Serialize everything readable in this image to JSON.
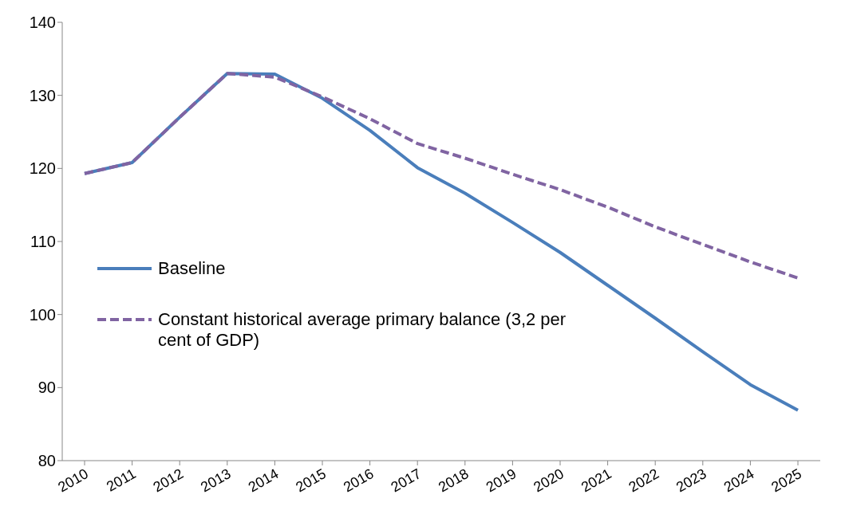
{
  "chart_data": {
    "type": "line",
    "categories": [
      "2010",
      "2011",
      "2012",
      "2013",
      "2014",
      "2015",
      "2016",
      "2017",
      "2018",
      "2019",
      "2020",
      "2021",
      "2022",
      "2023",
      "2024",
      "2025"
    ],
    "series": [
      {
        "name": "Baseline",
        "color": "#4a7ebb",
        "line_style": "solid",
        "values": [
          119.3,
          120.8,
          127.0,
          133.0,
          132.9,
          129.6,
          125.2,
          120.1,
          116.6,
          112.6,
          108.5,
          104.0,
          99.5,
          94.9,
          90.4,
          86.9
        ]
      },
      {
        "name": "Constant historical average primary balance (3,2 per cent of GDP)",
        "color": "#8064a2",
        "line_style": "dashed",
        "values": [
          119.3,
          120.8,
          127.0,
          133.0,
          132.5,
          129.8,
          126.8,
          123.4,
          121.4,
          119.2,
          117.1,
          114.7,
          112.0,
          109.6,
          107.2,
          105.0
        ]
      }
    ],
    "ylim": [
      80,
      140
    ],
    "yticks": [
      80,
      90,
      100,
      110,
      120,
      130,
      140
    ],
    "grid": false,
    "legend": "left",
    "marker": "none"
  }
}
